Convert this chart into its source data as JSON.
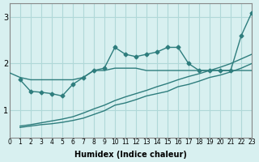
{
  "xlabel": "Humidex (Indice chaleur)",
  "ylabel": "",
  "bg_color": "#d8f0f0",
  "grid_color": "#b0d8d8",
  "line_color": "#2e7d7d",
  "xlim": [
    0,
    23
  ],
  "ylim": [
    0.4,
    3.3
  ],
  "xticks": [
    0,
    1,
    2,
    3,
    4,
    5,
    6,
    7,
    8,
    9,
    10,
    11,
    12,
    13,
    14,
    15,
    16,
    17,
    18,
    19,
    20,
    21,
    22,
    23
  ],
  "yticks": [
    1,
    2,
    3
  ],
  "line1_x": [
    0,
    1,
    2,
    3,
    4,
    5,
    6,
    7,
    8,
    9,
    10,
    11,
    12,
    13,
    14,
    15,
    16,
    17,
    18,
    19,
    20,
    21,
    22,
    23
  ],
  "line1_y": [
    1.8,
    1.7,
    1.65,
    1.65,
    1.65,
    1.65,
    1.65,
    1.7,
    1.85,
    1.85,
    1.9,
    1.9,
    1.9,
    1.85,
    1.85,
    1.85,
    1.85,
    1.85,
    1.85,
    1.85,
    1.85,
    1.85,
    1.85,
    1.85
  ],
  "line2_x": [
    1,
    2,
    3,
    4,
    5,
    6,
    7,
    8,
    9,
    10,
    11,
    12,
    13,
    14,
    15,
    16,
    17,
    18,
    19,
    20,
    21,
    22,
    23
  ],
  "line2_y": [
    0.62,
    0.65,
    0.68,
    0.7,
    0.73,
    0.77,
    0.82,
    0.9,
    0.98,
    1.1,
    1.15,
    1.22,
    1.3,
    1.35,
    1.4,
    1.5,
    1.55,
    1.62,
    1.7,
    1.75,
    1.82,
    1.9,
    2.0
  ],
  "line3_x": [
    1,
    2,
    3,
    4,
    5,
    6,
    7,
    8,
    9,
    10,
    11,
    12,
    13,
    14,
    15,
    16,
    17,
    18,
    19,
    20,
    21,
    22,
    23
  ],
  "line3_y": [
    0.65,
    0.68,
    0.72,
    0.76,
    0.8,
    0.85,
    0.93,
    1.02,
    1.1,
    1.2,
    1.28,
    1.35,
    1.42,
    1.5,
    1.57,
    1.65,
    1.72,
    1.78,
    1.85,
    1.92,
    2.0,
    2.1,
    2.2
  ],
  "line4_x": [
    1,
    2,
    3,
    4,
    5,
    6,
    7,
    8,
    9,
    10,
    11,
    12,
    13,
    14,
    15,
    16,
    17,
    18,
    19,
    20,
    21,
    22,
    23
  ],
  "line4_y": [
    1.65,
    1.4,
    1.38,
    1.35,
    1.3,
    1.55,
    1.7,
    1.85,
    1.9,
    2.35,
    2.2,
    2.15,
    2.2,
    2.25,
    2.35,
    2.35,
    2.0,
    1.85,
    1.85,
    1.85,
    1.85,
    2.6,
    3.1
  ],
  "marker": "D",
  "markersize": 2.5,
  "linewidth": 1.0
}
